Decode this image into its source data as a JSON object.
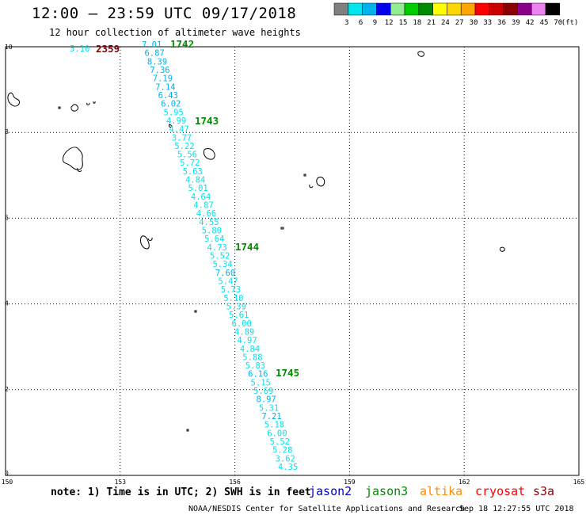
{
  "header": {
    "title": "12:00 – 23:59 UTC 09/17/2018",
    "subtitle": "12 hour collection of altimeter wave heights"
  },
  "legend": {
    "unit": "(ft)",
    "labels": [
      "3",
      "6",
      "9",
      "12",
      "15",
      "18",
      "21",
      "24",
      "27",
      "30",
      "33",
      "36",
      "39",
      "42",
      "45",
      "70"
    ],
    "colors": [
      "#808080",
      "#00e5ee",
      "#00b2ee",
      "#0000ee",
      "#90ee90",
      "#00cd00",
      "#008b00",
      "#ffff00",
      "#ffd700",
      "#ffa500",
      "#ff0000",
      "#cd0000",
      "#8b0000",
      "#8b008b",
      "#ee82ee",
      "#000000"
    ]
  },
  "axes": {
    "x_ticks": [
      "150",
      "153",
      "156",
      "159",
      "162",
      "165"
    ],
    "y_ticks": [
      "0",
      "2",
      "4",
      "6",
      "8",
      "10"
    ]
  },
  "footer": {
    "note": "note: 1) Time is in UTC; 2) SWH is in feet",
    "satellites": [
      {
        "name": "jason2",
        "color": "#0000cd"
      },
      {
        "name": "jason3",
        "color": "#008b00"
      },
      {
        "name": "altika",
        "color": "#ff8c00"
      },
      {
        "name": "cryosat",
        "color": "#ff0000"
      },
      {
        "name": "s3a",
        "color": "#8b0000"
      }
    ],
    "credit": "NOAA/NESDIS Center for Satellite Applications and Research",
    "timestamp": "Sep 18 12:27:55 UTC 2018"
  },
  "time_labels": [
    {
      "text": "2359",
      "color": "#8b0000"
    },
    {
      "text": "1742",
      "color": "#008b00"
    },
    {
      "text": "1743",
      "color": "#008b00"
    },
    {
      "text": "1744",
      "color": "#008b00"
    },
    {
      "text": "1745",
      "color": "#008b00"
    }
  ],
  "chart_data": {
    "type": "scatter",
    "x_range": [
      150,
      165
    ],
    "y_range": [
      0,
      10
    ],
    "extra_point": {
      "text": "5.10",
      "color": "#00e5ee"
    },
    "track_values": [
      {
        "v": "7.01",
        "c": "#00b2ee"
      },
      {
        "v": "6.87",
        "c": "#00b2ee"
      },
      {
        "v": "8.39",
        "c": "#00b2ee"
      },
      {
        "v": "7.36",
        "c": "#00b2ee"
      },
      {
        "v": "7.19",
        "c": "#00b2ee"
      },
      {
        "v": "7.14",
        "c": "#00b2ee"
      },
      {
        "v": "6.43",
        "c": "#00b2ee"
      },
      {
        "v": "6.02",
        "c": "#00b2ee"
      },
      {
        "v": "5.95",
        "c": "#00e5ee"
      },
      {
        "v": "4.99",
        "c": "#00e5ee"
      },
      {
        "v": "4.47",
        "c": "#00e5ee"
      },
      {
        "v": "3.77",
        "c": "#00e5ee"
      },
      {
        "v": "5.22",
        "c": "#00e5ee"
      },
      {
        "v": "5.56",
        "c": "#00e5ee"
      },
      {
        "v": "5.72",
        "c": "#00e5ee"
      },
      {
        "v": "5.63",
        "c": "#00e5ee"
      },
      {
        "v": "4.84",
        "c": "#00e5ee"
      },
      {
        "v": "5.01",
        "c": "#00e5ee"
      },
      {
        "v": "4.64",
        "c": "#00e5ee"
      },
      {
        "v": "4.87",
        "c": "#00e5ee"
      },
      {
        "v": "4.66",
        "c": "#00e5ee"
      },
      {
        "v": "4.55",
        "c": "#00e5ee"
      },
      {
        "v": "5.80",
        "c": "#00e5ee"
      },
      {
        "v": "5.64",
        "c": "#00e5ee"
      },
      {
        "v": "4.73",
        "c": "#00e5ee"
      },
      {
        "v": "5.52",
        "c": "#00e5ee"
      },
      {
        "v": "5.34",
        "c": "#00e5ee"
      },
      {
        "v": "7.60",
        "c": "#00b2ee"
      },
      {
        "v": "5.47",
        "c": "#00e5ee"
      },
      {
        "v": "5.73",
        "c": "#00e5ee"
      },
      {
        "v": "5.10",
        "c": "#00e5ee"
      },
      {
        "v": "5.39",
        "c": "#00e5ee"
      },
      {
        "v": "5.61",
        "c": "#00e5ee"
      },
      {
        "v": "6.00",
        "c": "#00e5ee"
      },
      {
        "v": "4.89",
        "c": "#00e5ee"
      },
      {
        "v": "4.97",
        "c": "#00e5ee"
      },
      {
        "v": "4.84",
        "c": "#00e5ee"
      },
      {
        "v": "5.88",
        "c": "#00e5ee"
      },
      {
        "v": "5.83",
        "c": "#00e5ee"
      },
      {
        "v": "6.16",
        "c": "#00b2ee"
      },
      {
        "v": "5.15",
        "c": "#00e5ee"
      },
      {
        "v": "5.69",
        "c": "#00e5ee"
      },
      {
        "v": "8.97",
        "c": "#00b2ee"
      },
      {
        "v": "5.31",
        "c": "#00e5ee"
      },
      {
        "v": "7.21",
        "c": "#00b2ee"
      },
      {
        "v": "5.18",
        "c": "#00e5ee"
      },
      {
        "v": "6.00",
        "c": "#00e5ee"
      },
      {
        "v": "5.52",
        "c": "#00e5ee"
      },
      {
        "v": "5.28",
        "c": "#00e5ee"
      },
      {
        "v": "3.62",
        "c": "#00e5ee"
      },
      {
        "v": "4.35",
        "c": "#00e5ee"
      }
    ]
  }
}
